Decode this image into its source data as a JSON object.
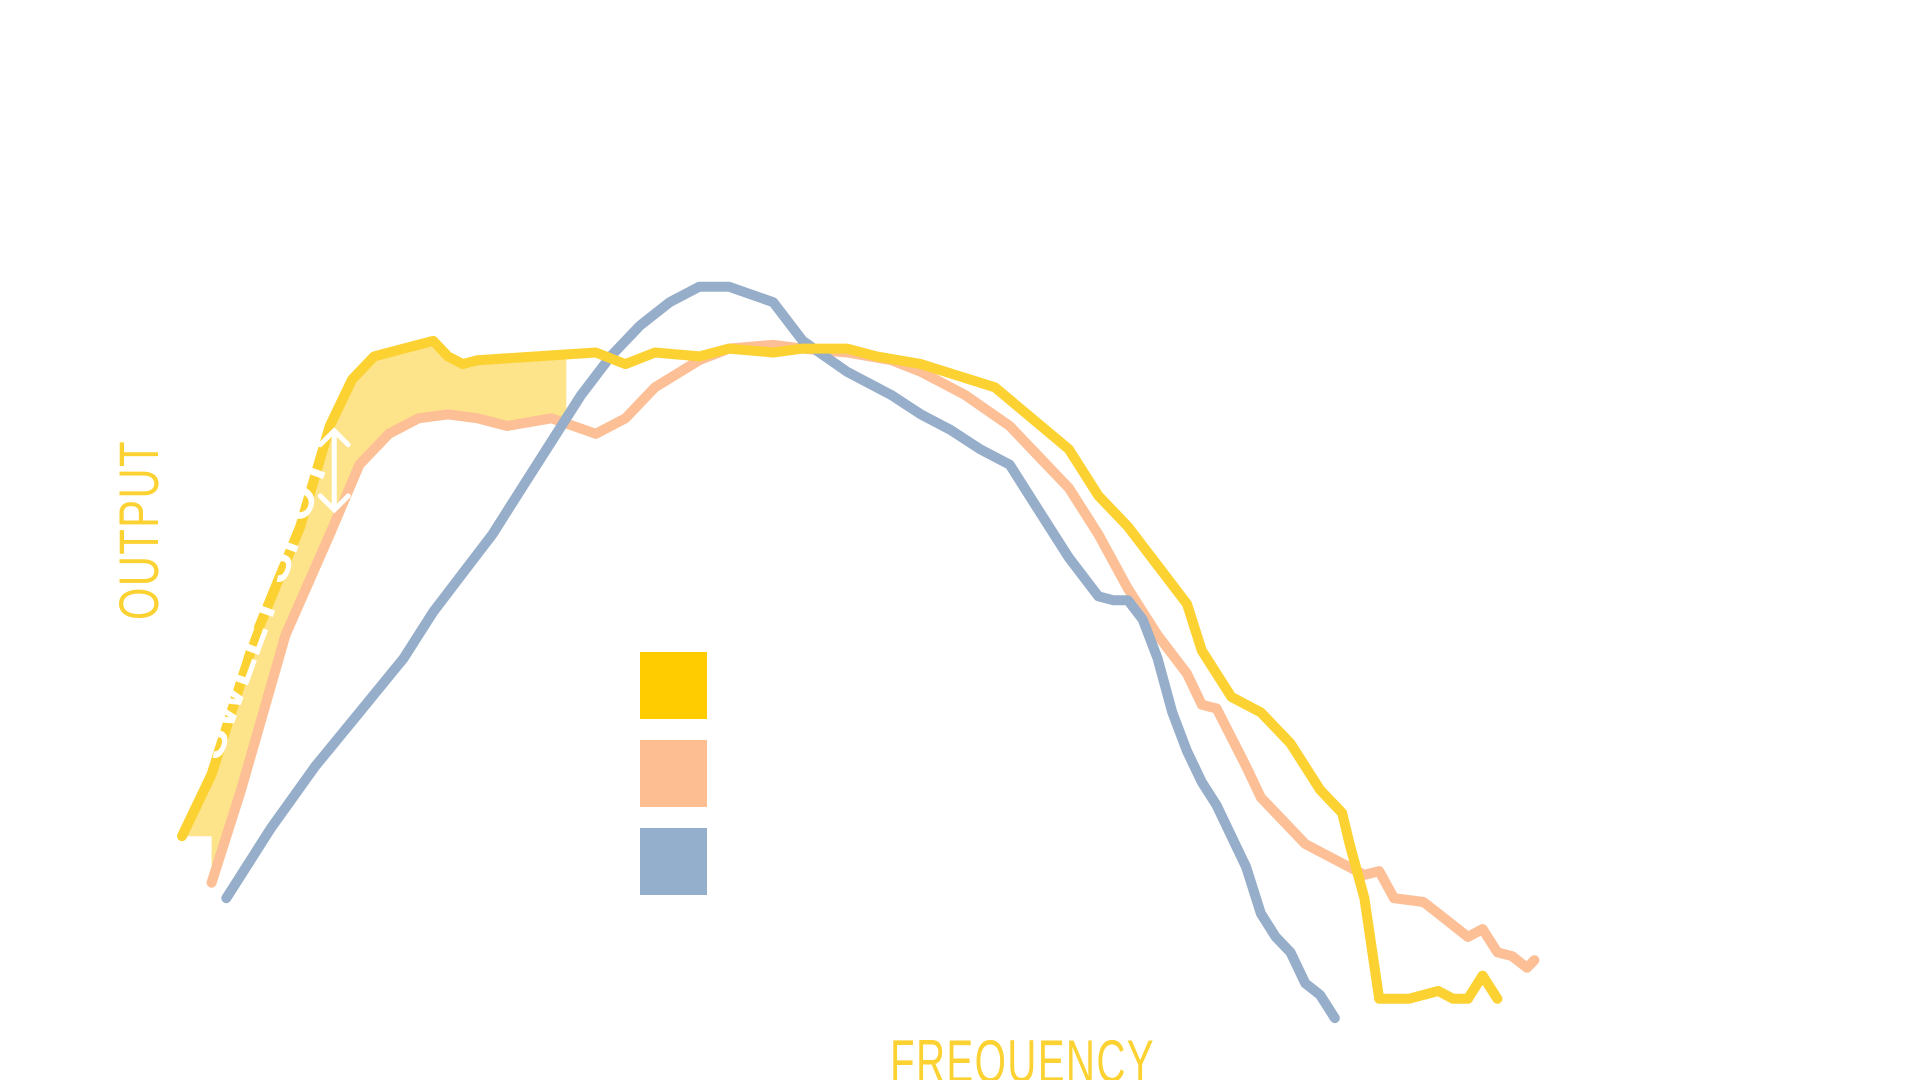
{
  "chart_data": {
    "type": "line",
    "xlabel": "FREQUENCY",
    "ylabel": "OUTPUT",
    "annotation": "SWEET SPOT",
    "xlim": [
      0,
      100
    ],
    "ylim": [
      0,
      100
    ],
    "grid": false,
    "legend_position": "center",
    "colors": {
      "yellow": "#fcd232",
      "peach": "#fcbf96",
      "blue": "#96aec9",
      "band": "#fde38a",
      "legend_yellow": "#ffcc00",
      "legend_peach": "#fdbe91",
      "legend_blue": "#94afcb",
      "label": "#fcd232",
      "annotation": "#ffffff"
    },
    "legend": [
      {
        "series": 0,
        "label": ""
      },
      {
        "series": 1,
        "label": ""
      },
      {
        "series": 2,
        "label": ""
      }
    ],
    "series": [
      {
        "color_key": "yellow",
        "x": [
          0,
          2,
          5,
          8,
          10,
          11.5,
          13,
          15,
          17,
          18,
          19,
          20,
          24,
          28,
          30,
          32,
          35,
          37,
          40,
          42,
          45,
          47,
          50,
          55,
          60,
          62,
          64,
          66,
          68,
          69,
          71,
          73,
          75,
          77,
          78.5,
          79,
          80,
          81,
          83,
          85,
          86,
          87,
          88,
          89
        ],
        "y": [
          24,
          32,
          50,
          64,
          77,
          83,
          86,
          87,
          88,
          86,
          85,
          85.5,
          86,
          86.5,
          85,
          86.5,
          86,
          87,
          86.5,
          87,
          87,
          86,
          85,
          82,
          74,
          68,
          64,
          59,
          54,
          48,
          42,
          40,
          36,
          30,
          27,
          23,
          16,
          3,
          3,
          4,
          3,
          3,
          6,
          3
        ]
      },
      {
        "color_key": "peach",
        "x": [
          2,
          4,
          7,
          10,
          12,
          14,
          16,
          18,
          20,
          22,
          25,
          28,
          30,
          32,
          35,
          37,
          40,
          42,
          45,
          48,
          50,
          53,
          56,
          58,
          60,
          62,
          64,
          66,
          68,
          69,
          70,
          72,
          73,
          74,
          76,
          78,
          80,
          81,
          82,
          84,
          85,
          87,
          88,
          89,
          90,
          91,
          91.5
        ],
        "y": [
          18,
          30,
          50,
          63,
          72,
          76,
          78,
          78.5,
          78,
          77,
          78,
          76,
          78,
          82,
          85.5,
          87,
          87.5,
          87,
          86.5,
          85.5,
          84,
          81,
          77,
          73,
          69,
          63,
          56,
          50,
          45,
          41,
          40.5,
          33,
          29,
          27,
          23,
          21,
          19,
          19.5,
          16,
          15.5,
          14,
          11,
          12,
          9,
          8.5,
          7,
          8
        ]
      },
      {
        "color_key": "blue",
        "x": [
          3,
          6,
          9,
          12,
          15,
          17,
          19,
          21,
          23,
          25,
          27,
          29,
          31,
          33,
          35,
          37,
          40,
          42,
          45,
          48,
          50,
          52,
          54,
          56,
          58,
          60,
          62,
          63,
          64,
          65,
          66,
          67,
          68,
          69,
          70,
          72,
          73,
          74,
          75,
          76,
          77,
          78
        ],
        "y": [
          16,
          25,
          33,
          40,
          47,
          53,
          58,
          63,
          69,
          75,
          81,
          86,
          90,
          93,
          95,
          95,
          93,
          88,
          84,
          81,
          78.5,
          76.5,
          74,
          72,
          66,
          60,
          55,
          54.5,
          54.5,
          52,
          47,
          40,
          35,
          31,
          28,
          20,
          14,
          11,
          9,
          5,
          3.5,
          0.5
        ]
      }
    ],
    "band": {
      "from_series": 0,
      "to_series": 1,
      "x_range": [
        0,
        26
      ]
    },
    "sweet_spot_x": 10.3
  }
}
